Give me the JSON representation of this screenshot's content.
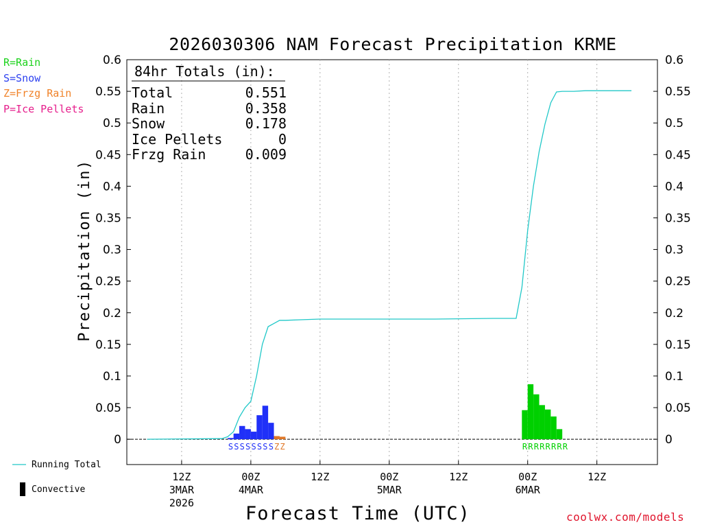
{
  "title": "2026030306 NAM Forecast Precipitation KRME",
  "precip_type_legend": [
    {
      "label": "R=Rain",
      "color": "#19d219"
    },
    {
      "label": "S=Snow",
      "color": "#2d41f0"
    },
    {
      "label": "Z=Frzg Rain",
      "color": "#f08228"
    },
    {
      "label": "P=Ice Pellets",
      "color": "#e61e8c"
    }
  ],
  "totals": {
    "heading": "84hr Totals (in):",
    "rows": [
      {
        "label": "Total",
        "value": "0.551"
      },
      {
        "label": "Rain",
        "value": "0.358"
      },
      {
        "label": "Snow",
        "value": "0.178"
      },
      {
        "label": "Ice Pellets",
        "value": "0"
      },
      {
        "label": "Frzg Rain",
        "value": "0.009"
      }
    ]
  },
  "bottom_legend": {
    "running_total": "Running Total",
    "convective": "Convective"
  },
  "credit": "coolwx.com/models",
  "colors": {
    "rain": "#00d000",
    "snow": "#2030f8",
    "frzg": "#e07828",
    "running_total": "#20c8c8",
    "grid": "#b0b0b0"
  },
  "chart_data": {
    "type": "bar",
    "title": "2026030306 NAM Forecast Precipitation KRME",
    "xlabel": "Forecast Time (UTC)",
    "ylabel": "Precipitation (in)",
    "units": "hours since 2026-03-03 06Z",
    "xlim": [
      -3.5,
      88.5
    ],
    "ylim": [
      -0.04,
      0.6
    ],
    "yticks": [
      0,
      0.05,
      0.1,
      0.15,
      0.2,
      0.25,
      0.3,
      0.35,
      0.4,
      0.45,
      0.5,
      0.55,
      0.6
    ],
    "ytick_labels": [
      "0",
      "0.05",
      "0.1",
      "0.15",
      "0.2",
      "0.25",
      "0.3",
      "0.35",
      "0.4",
      "0.45",
      "0.5",
      "0.55",
      "0.6"
    ],
    "xticks": [
      {
        "hour": 6,
        "label": [
          "12Z",
          "3MAR",
          "2026"
        ],
        "grid": true
      },
      {
        "hour": 18,
        "label": [
          "00Z",
          "4MAR"
        ],
        "grid": true
      },
      {
        "hour": 30,
        "label": [
          "12Z"
        ],
        "grid": true
      },
      {
        "hour": 42,
        "label": [
          "00Z",
          "5MAR"
        ],
        "grid": true
      },
      {
        "hour": 54,
        "label": [
          "12Z"
        ],
        "grid": true
      },
      {
        "hour": 66,
        "label": [
          "00Z",
          "6MAR"
        ],
        "grid": true
      },
      {
        "hour": 78,
        "label": [
          "12Z"
        ],
        "grid": true
      }
    ],
    "bar_width_hours": 1,
    "bars": [
      {
        "hour": 14,
        "value": 0.002,
        "type": "snow"
      },
      {
        "hour": 15,
        "value": 0.009,
        "type": "snow"
      },
      {
        "hour": 16,
        "value": 0.021,
        "type": "snow"
      },
      {
        "hour": 17,
        "value": 0.016,
        "type": "snow"
      },
      {
        "hour": 18,
        "value": 0.012,
        "type": "snow"
      },
      {
        "hour": 19,
        "value": 0.038,
        "type": "snow"
      },
      {
        "hour": 20,
        "value": 0.053,
        "type": "snow"
      },
      {
        "hour": 21,
        "value": 0.026,
        "type": "snow"
      },
      {
        "hour": 22,
        "value": 0.005,
        "type": "frzg"
      },
      {
        "hour": 23,
        "value": 0.004,
        "type": "frzg"
      },
      {
        "hour": 65,
        "value": 0.046,
        "type": "rain"
      },
      {
        "hour": 66,
        "value": 0.087,
        "type": "rain"
      },
      {
        "hour": 67,
        "value": 0.071,
        "type": "rain"
      },
      {
        "hour": 68,
        "value": 0.054,
        "type": "rain"
      },
      {
        "hour": 69,
        "value": 0.047,
        "type": "rain"
      },
      {
        "hour": 70,
        "value": 0.036,
        "type": "rain"
      },
      {
        "hour": 71,
        "value": 0.016,
        "type": "rain"
      }
    ],
    "type_letters": [
      {
        "hour": 14,
        "letter": "S",
        "type": "snow"
      },
      {
        "hour": 15,
        "letter": "S",
        "type": "snow"
      },
      {
        "hour": 16,
        "letter": "S",
        "type": "snow"
      },
      {
        "hour": 17,
        "letter": "S",
        "type": "snow"
      },
      {
        "hour": 18,
        "letter": "S",
        "type": "snow"
      },
      {
        "hour": 19,
        "letter": "S",
        "type": "snow"
      },
      {
        "hour": 20,
        "letter": "S",
        "type": "snow"
      },
      {
        "hour": 21,
        "letter": "S",
        "type": "snow"
      },
      {
        "hour": 22,
        "letter": "Z",
        "type": "frzg"
      },
      {
        "hour": 23,
        "letter": "Z",
        "type": "frzg"
      },
      {
        "hour": 65,
        "letter": "R",
        "type": "rain"
      },
      {
        "hour": 66,
        "letter": "R",
        "type": "rain"
      },
      {
        "hour": 67,
        "letter": "R",
        "type": "rain"
      },
      {
        "hour": 68,
        "letter": "R",
        "type": "rain"
      },
      {
        "hour": 69,
        "letter": "R",
        "type": "rain"
      },
      {
        "hour": 70,
        "letter": "R",
        "type": "rain"
      },
      {
        "hour": 71,
        "letter": "R",
        "type": "rain"
      },
      {
        "hour": 72,
        "letter": "R",
        "type": "rain"
      }
    ],
    "running_total": {
      "name": "Running Total",
      "x": [
        0,
        13,
        14,
        15,
        16,
        17,
        18,
        19,
        20,
        21,
        22,
        23,
        24,
        27,
        30,
        40,
        50,
        60,
        64,
        65,
        66,
        67,
        68,
        69,
        70,
        71,
        72,
        74,
        76,
        80,
        84
      ],
      "y": [
        0,
        0.001,
        0.004,
        0.012,
        0.035,
        0.05,
        0.06,
        0.1,
        0.15,
        0.178,
        0.183,
        0.188,
        0.188,
        0.189,
        0.19,
        0.19,
        0.19,
        0.191,
        0.191,
        0.24,
        0.33,
        0.4,
        0.455,
        0.498,
        0.532,
        0.549,
        0.55,
        0.55,
        0.551,
        0.551,
        0.551
      ]
    }
  }
}
